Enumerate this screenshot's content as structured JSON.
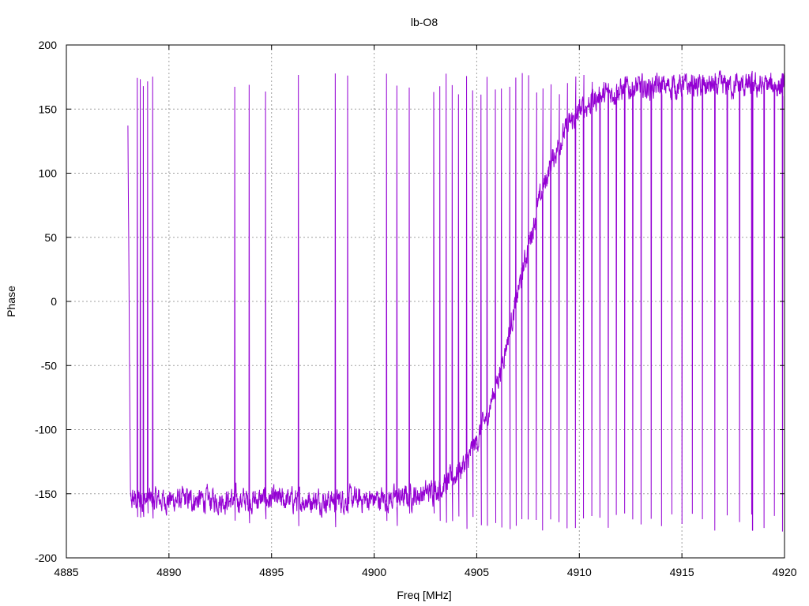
{
  "chart_data": {
    "type": "line",
    "title": "lb-O8",
    "xlabel": "Freq [MHz]",
    "ylabel": "Phase",
    "xlim": [
      4885,
      4920
    ],
    "ylim": [
      -200,
      200
    ],
    "xticks": [
      "4885",
      "4890",
      "4895",
      "4900",
      "4905",
      "4910",
      "4915",
      "4920"
    ],
    "yticks": [
      "200",
      "150",
      "100",
      "50",
      "0",
      "-50",
      "-100",
      "-150",
      "-200"
    ],
    "grid": true,
    "legend": "none",
    "series_color": "#9400d3",
    "series": [
      {
        "x_start": 4888.0,
        "x_end": 4920.0,
        "baseline_start": -155,
        "baseline_end": 168,
        "wrap_transition_center": 4907,
        "wraps_at": [
          4888.45,
          4888.6,
          4888.75,
          4888.95,
          4889.2,
          4893.2,
          4893.9,
          4894.7,
          4896.3,
          4898.1,
          4898.7,
          4900.6,
          4901.1,
          4901.7,
          4902.9,
          4903.2,
          4903.5,
          4903.8,
          4904.1,
          4904.5,
          4904.8,
          4905.2,
          4905.5,
          4905.9,
          4906.2,
          4906.6,
          4906.9,
          4907.2,
          4907.5,
          4907.9,
          4908.2,
          4908.6,
          4909.0,
          4909.4,
          4909.8,
          4910.2,
          4910.6,
          4911.0,
          4911.4,
          4911.8,
          4912.2,
          4912.6,
          4913.0,
          4913.5,
          4914.0,
          4914.5,
          4915.0,
          4915.5,
          4916.0,
          4916.6,
          4917.2,
          4917.8,
          4918.4,
          4919.0,
          4919.5,
          4919.9
        ]
      }
    ]
  }
}
